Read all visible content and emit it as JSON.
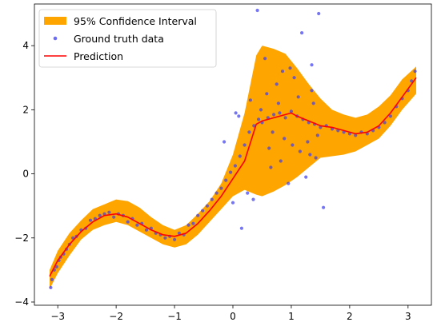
{
  "chart_data": {
    "type": "scatter",
    "xlim": [
      -3.4,
      3.4
    ],
    "ylim": [
      -4.1,
      5.3
    ],
    "x_ticks": [
      -3,
      -2,
      -1,
      0,
      1,
      2,
      3
    ],
    "y_ticks": [
      -4,
      -2,
      0,
      2,
      4
    ],
    "x_tick_labels": [
      "−3",
      "−2",
      "−1",
      "0",
      "1",
      "2",
      "3"
    ],
    "y_tick_labels": [
      "−4",
      "−2",
      "0",
      "2",
      "4"
    ],
    "grid": false,
    "legend_position": "top-left",
    "legend": [
      {
        "label": "95% Confidence Interval",
        "kind": "patch",
        "color": "#ffa500"
      },
      {
        "label": "Ground truth data",
        "kind": "marker",
        "color": "#3c3cf0"
      },
      {
        "label": "Prediction",
        "kind": "line",
        "color": "#ff0000"
      }
    ],
    "series": [
      {
        "name": "95% Confidence Interval",
        "kind": "band",
        "color": "#ffa500",
        "x": [
          -3.14,
          -3.0,
          -2.8,
          -2.6,
          -2.4,
          -2.2,
          -2.0,
          -1.8,
          -1.6,
          -1.4,
          -1.2,
          -1.0,
          -0.8,
          -0.6,
          -0.4,
          -0.2,
          0.0,
          0.2,
          0.4,
          0.5,
          0.7,
          0.9,
          1.1,
          1.3,
          1.5,
          1.7,
          1.9,
          2.1,
          2.3,
          2.5,
          2.7,
          2.9,
          3.14
        ],
        "lower": [
          -3.6,
          -3.1,
          -2.55,
          -2.05,
          -1.75,
          -1.6,
          -1.5,
          -1.6,
          -1.8,
          -2.0,
          -2.2,
          -2.3,
          -2.2,
          -1.9,
          -1.5,
          -1.1,
          -0.7,
          -0.5,
          -0.65,
          -0.7,
          -0.55,
          -0.35,
          -0.1,
          0.2,
          0.5,
          0.55,
          0.6,
          0.7,
          0.9,
          1.1,
          1.5,
          2.0,
          2.5
        ],
        "upper": [
          -3.0,
          -2.4,
          -1.85,
          -1.45,
          -1.1,
          -0.95,
          -0.8,
          -0.85,
          -1.05,
          -1.35,
          -1.6,
          -1.75,
          -1.6,
          -1.25,
          -0.85,
          -0.3,
          0.6,
          1.9,
          3.7,
          4.0,
          3.9,
          3.75,
          3.3,
          2.8,
          2.35,
          2.0,
          1.85,
          1.75,
          1.85,
          2.1,
          2.45,
          2.95,
          3.35
        ]
      },
      {
        "name": "Prediction",
        "kind": "line",
        "color": "#ff0000",
        "x": [
          -3.14,
          -3.0,
          -2.8,
          -2.6,
          -2.4,
          -2.2,
          -2.0,
          -1.8,
          -1.6,
          -1.4,
          -1.2,
          -1.0,
          -0.8,
          -0.6,
          -0.4,
          -0.2,
          0.0,
          0.2,
          0.4,
          0.5,
          0.7,
          0.9,
          1.0,
          1.1,
          1.3,
          1.5,
          1.7,
          1.9,
          2.1,
          2.3,
          2.5,
          2.7,
          2.9,
          3.14
        ],
        "y": [
          -3.2,
          -2.7,
          -2.2,
          -1.8,
          -1.5,
          -1.3,
          -1.25,
          -1.35,
          -1.55,
          -1.75,
          -1.9,
          -1.95,
          -1.85,
          -1.55,
          -1.15,
          -0.7,
          -0.15,
          0.4,
          1.55,
          1.65,
          1.75,
          1.85,
          1.9,
          1.8,
          1.65,
          1.5,
          1.45,
          1.35,
          1.25,
          1.3,
          1.5,
          1.9,
          2.4,
          3.0
        ]
      },
      {
        "name": "Ground truth data",
        "kind": "scatter",
        "color": "#3c3cf0",
        "x": [
          -3.12,
          -3.1,
          -3.06,
          -3.02,
          -2.98,
          -2.95,
          -2.9,
          -2.85,
          -2.8,
          -2.74,
          -2.68,
          -2.6,
          -2.52,
          -2.44,
          -2.36,
          -2.28,
          -2.2,
          -2.12,
          -2.04,
          -1.96,
          -1.88,
          -1.8,
          -1.72,
          -1.64,
          -1.56,
          -1.48,
          -1.4,
          -1.32,
          -1.24,
          -1.16,
          -1.08,
          -1.0,
          -0.92,
          -0.84,
          -0.76,
          -0.68,
          -0.6,
          -0.52,
          -0.44,
          -0.36,
          -0.28,
          -0.2,
          -0.12,
          -0.04,
          0.04,
          0.12,
          0.2,
          0.28,
          0.36,
          0.44,
          0.5,
          0.6,
          0.7,
          0.8,
          0.9,
          1.0,
          1.1,
          1.2,
          1.3,
          1.4,
          1.5,
          1.6,
          1.7,
          1.8,
          1.9,
          2.0,
          2.1,
          2.2,
          2.3,
          2.4,
          2.5,
          2.6,
          2.7,
          2.8,
          2.9,
          3.0,
          3.06,
          3.12,
          0.42,
          1.47,
          1.18,
          0.3,
          0.55,
          0.85,
          1.05,
          1.35,
          0.65,
          0.95,
          1.25,
          0.15,
          0.05,
          0.75,
          1.55,
          0.35,
          1.35,
          0.62,
          1.02,
          1.42,
          0.78,
          1.15,
          -0.15,
          0.0,
          0.25,
          0.48,
          0.88,
          1.28,
          0.58,
          0.98,
          1.38,
          0.1,
          1.45,
          0.82,
          1.12,
          0.68,
          1.32
        ],
        "y": [
          -3.55,
          -3.3,
          -3.0,
          -2.9,
          -2.7,
          -2.6,
          -2.5,
          -2.35,
          -2.2,
          -2.0,
          -1.95,
          -1.75,
          -1.7,
          -1.45,
          -1.4,
          -1.3,
          -1.25,
          -1.2,
          -1.35,
          -1.25,
          -1.3,
          -1.5,
          -1.4,
          -1.6,
          -1.55,
          -1.75,
          -1.7,
          -1.85,
          -1.9,
          -2.0,
          -1.95,
          -2.05,
          -1.85,
          -1.9,
          -1.6,
          -1.55,
          -1.3,
          -1.15,
          -1.0,
          -0.8,
          -0.6,
          -0.45,
          -0.2,
          0.05,
          0.25,
          0.55,
          0.9,
          1.3,
          1.5,
          1.7,
          1.6,
          1.75,
          1.85,
          1.9,
          1.75,
          1.95,
          1.8,
          1.7,
          1.6,
          1.55,
          1.45,
          1.5,
          1.4,
          1.35,
          1.3,
          1.25,
          1.2,
          1.3,
          1.25,
          1.35,
          1.45,
          1.6,
          1.8,
          2.1,
          2.35,
          2.6,
          2.9,
          3.2,
          5.1,
          5.0,
          4.4,
          2.3,
          3.6,
          3.2,
          3.0,
          2.6,
          0.2,
          -0.3,
          -0.1,
          -1.7,
          1.9,
          2.8,
          -1.05,
          -0.8,
          3.4,
          0.8,
          0.9,
          0.5,
          2.2,
          0.7,
          1.0,
          -0.9,
          -0.6,
          2.0,
          1.1,
          1.0,
          2.5,
          3.3,
          2.2,
          1.8,
          1.2,
          0.4,
          2.4,
          1.3,
          0.6
        ]
      }
    ]
  }
}
